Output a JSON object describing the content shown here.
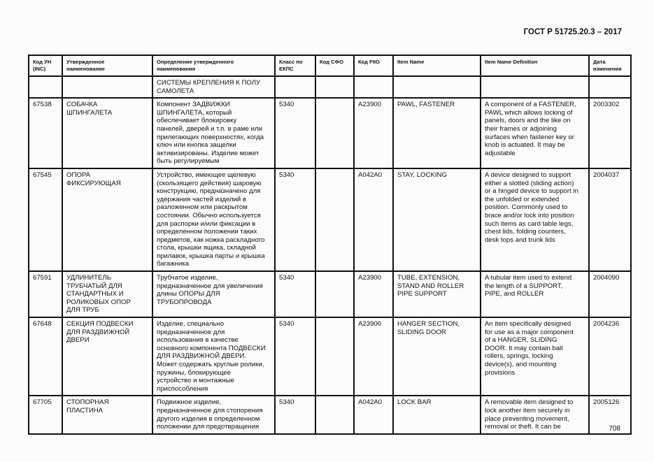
{
  "header": {
    "doc_title": "ГОСТ Р 51725.20.3 – 2017"
  },
  "table": {
    "columns": [
      "Код УН\n(INC)",
      "Утвержденное\nнаименование",
      "Определение утвержденного\nнаименования",
      "Класс по\nЕКПС",
      "Код СФО",
      "Код FIIG",
      "Item Name",
      "Item Name Definition",
      "Дата\nизменения"
    ],
    "continuation": {
      "definition": "СИСТЕМЫ КРЕПЛЕНИЯ К ПОЛУ\nСАМОЛЕТА"
    },
    "rows": [
      {
        "inc": "67538",
        "name": "СОБАЧКА\nШПИНГАЛЕТА",
        "definition": "Компонент ЗАДВИЖКИ\nШПИНГАЛЕТА, который\nобеспечивает блокировку\nпанелей, дверей и т.п. в раме или\nприлегающих поверхностях, когда\nключ или кнопка защелки\nактивизированы. Изделие может\nбыть регулируемым",
        "ekps": "5340",
        "sfo": "",
        "fiig": "A23900",
        "item_name": "PAWL, FASTENER",
        "item_def": "A component of a FASTENER,\nPAWL which allows locking of\npanels, doors and the like on\ntheir frames or adjoining\nsurfaces when fastener key or\nknob is actuated.  It may be\nadjustable",
        "date": "2003302"
      },
      {
        "inc": "67545",
        "name": "ОПОРА\nФИКСИРУЮЩАЯ",
        "definition": "Устройство, имеющее щелевую\n(скользящего действия) шаровую\nконструкцию, предназначено для\nудержания частей изделий в\nразложенном или раскрытом\nсостоянии. Обычно используется\nдля распорки и/или фиксации в\nопределенном положении таких\nпредметов, как ножка раскладного\nстола, крышки ящика, складной\nприлавок, крышка парты и крышка\nбагажника",
        "ekps": "5340",
        "sfo": "",
        "fiig": "A042A0",
        "item_name": "STAY, LOCKING",
        "item_def": "A device designed to support\neither a slotted (sliding action)\nor a hinged device to support in\nthe unfolded or extended\nposition.  Commonly used to\nbrace and/or lock into position\nsuch items as card table legs,\nchest lids, folding counters,\ndesk tops and trunk lids",
        "date": "2004037"
      },
      {
        "inc": "67591",
        "name": "УДЛИНИТЕЛЬ\nТРУБЧАТЫЙ ДЛЯ\nСТАНДАРТНЫХ И\nРОЛИКОВЫХ ОПОР\nДЛЯ ТРУБ",
        "definition": "Трубчатое изделие,\nпредназначенное для увеличения\nдлины ОПОРЫ ДЛЯ\nТРУБОПРОВОДА",
        "ekps": "5340",
        "sfo": "",
        "fiig": "A23900",
        "item_name": "TUBE, EXTENSION,\nSTAND AND ROLLER\nPIPE SUPPORT",
        "item_def": "A tubular item used to extend\nthe length of a SUPPORT,\nPIPE, and ROLLER",
        "date": "2004090"
      },
      {
        "inc": "67648",
        "name": "СЕКЦИЯ ПОДВЕСКИ\nДЛЯ РАЗДВИЖНОЙ\nДВЕРИ",
        "definition": "Изделие, специально\nпредназначенное для\nиспользования в качестве\nосновного компонента ПОДВЕСКИ\nДЛЯ РАЗДВИЖНОЙ ДВЕРИ.\nМожет содержать круглые ролики,\nпружины, блокирующее\nустройство и монтажные\nприспособления",
        "ekps": "5340",
        "sfo": "",
        "fiig": "A23900",
        "item_name": "HANGER SECTION,\nSLIDING DOOR",
        "item_def": "An item specifically designed\nfor use as a major component\nof a HANGER, SLIDING\nDOOR. It may contain ball\nrollers, springs, locking\ndevice(s), and mounting\nprovisions",
        "date": "2004236"
      },
      {
        "inc": "67705",
        "name": "СТОПОРНАЯ\nПЛАСТИНА",
        "definition": "Подвижное изделие,\nпредназначенное для стопорения\nдругого изделия в определенном\nположении для предотвращения",
        "ekps": "5340",
        "sfo": "",
        "fiig": "A042A0",
        "item_name": "LOCK BAR",
        "item_def": "A removable item designed to\nlock another item securely in\nplace preventing movement,\nremoval or theft.  It can be",
        "date": "2005126"
      }
    ]
  },
  "footer": {
    "page_number": "708"
  }
}
